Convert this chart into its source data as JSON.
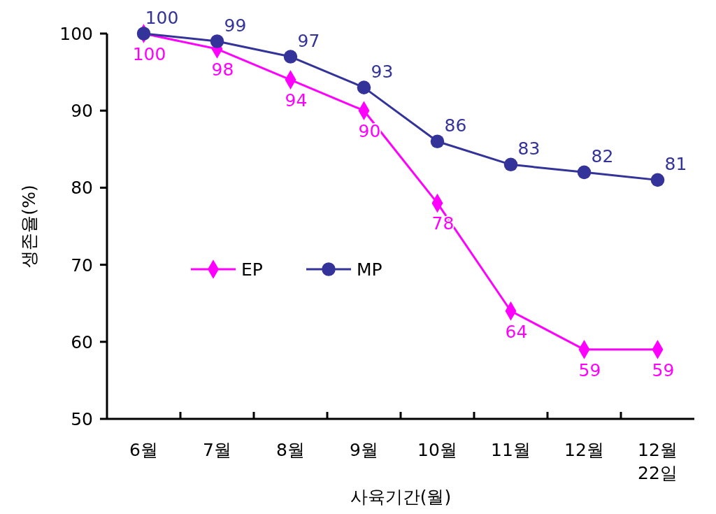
{
  "chart_data": {
    "type": "line",
    "xlabel": "사육기간(월)",
    "ylabel": "생존율(%)",
    "categories": [
      "6월",
      "7월",
      "8월",
      "9월",
      "10월",
      "11월",
      "12월",
      "12월\n22일"
    ],
    "series": [
      {
        "name": "EP",
        "color": "#ff00ff",
        "marker": "diamond",
        "values": [
          100,
          98,
          94,
          90,
          78,
          64,
          59,
          59
        ]
      },
      {
        "name": "MP",
        "color": "#333399",
        "marker": "circle",
        "values": [
          100,
          99,
          97,
          93,
          86,
          83,
          82,
          81
        ]
      }
    ],
    "ylim": [
      50,
      100
    ],
    "yticks": [
      50,
      60,
      70,
      80,
      90,
      100
    ],
    "data_labels": true,
    "legend": "center left",
    "grid": false
  }
}
